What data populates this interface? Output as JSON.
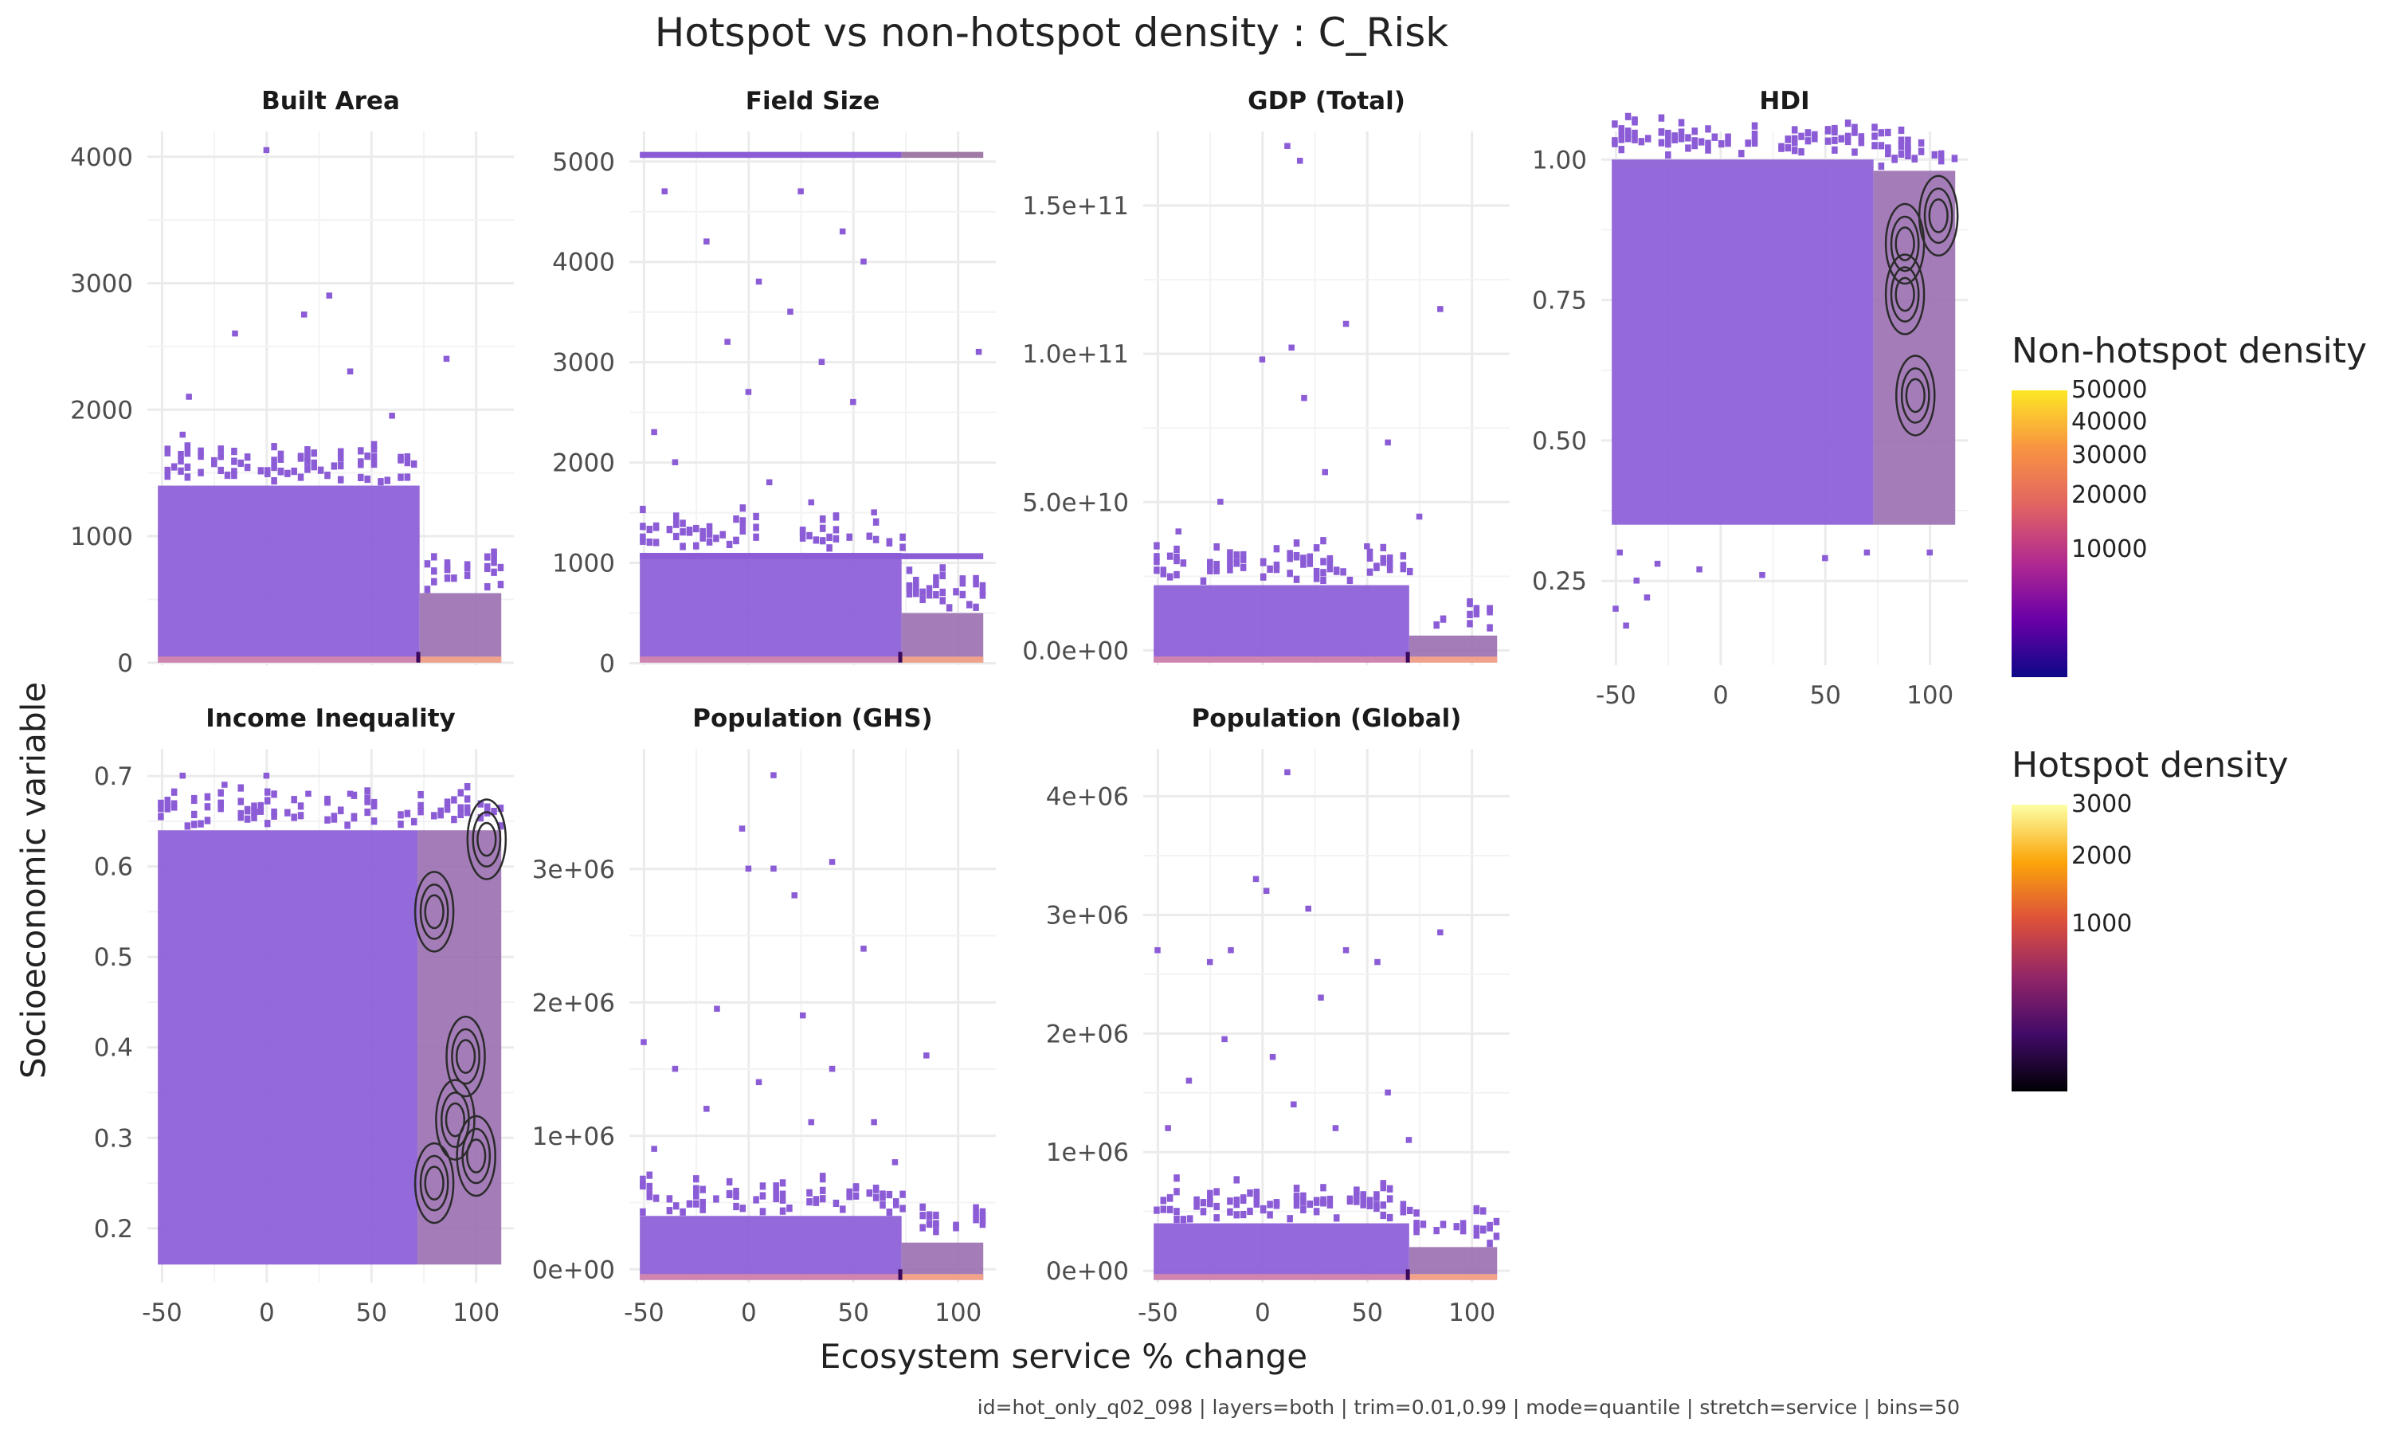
{
  "title": "Hotspot vs non-hotspot density : C_Risk",
  "xlabel": "Ecosystem service % change",
  "ylabel": "Socioeconomic variable",
  "caption": "id=hot_only_q02_098 | layers=both | trim=0.01,0.99 | mode=quantile | stretch=service | bins=50",
  "legend": {
    "nonhotspot": {
      "title": "Non-hotspot density",
      "ticks": [
        "50000",
        "40000",
        "30000",
        "20000",
        "10000"
      ],
      "colors": [
        "#fde725",
        "#f89441",
        "#e16462",
        "#b12a90",
        "#6a00a8",
        "#0d0887"
      ]
    },
    "hotspot": {
      "title": "Hotspot density",
      "ticks": [
        "3000",
        "2000",
        "1000"
      ],
      "colors": [
        "#fcffa4",
        "#fca50a",
        "#dd513a",
        "#932667",
        "#420a68",
        "#000004"
      ]
    }
  },
  "colors": {
    "bins": "#8b5cd6",
    "bins_dense": "#9a63c9",
    "hot_band": "#f0a38a",
    "contour": "#2b2b2b",
    "grid": "#ebebeb"
  },
  "chart_data": [
    {
      "type": "heatmap",
      "panel": "Built Area",
      "xlim": [
        -57,
        118
      ],
      "ylim": [
        -20,
        4200
      ],
      "xticks": [
        "-50",
        "0",
        "50",
        "100"
      ],
      "yticks": [
        {
          "v": 0,
          "l": "0"
        },
        {
          "v": 1000,
          "l": "1000"
        },
        {
          "v": 2000,
          "l": "2000"
        },
        {
          "v": 3000,
          "l": "3000"
        },
        {
          "v": 4000,
          "l": "4000"
        }
      ],
      "main_top": 1400,
      "hot_top": 550,
      "hot_start": 73,
      "points": [
        [
          0,
          4050
        ],
        [
          -37,
          2100
        ],
        [
          -15,
          2600
        ],
        [
          18,
          2750
        ],
        [
          30,
          2900
        ],
        [
          86,
          2400
        ],
        [
          -40,
          1800
        ],
        [
          40,
          2300
        ],
        [
          60,
          1950
        ]
      ],
      "contours": false
    },
    {
      "type": "heatmap",
      "panel": "Field Size",
      "xlim": [
        -57,
        118
      ],
      "ylim": [
        -20,
        5300
      ],
      "xticks": [
        "-50",
        "0",
        "50",
        "100"
      ],
      "yticks": [
        {
          "v": 0,
          "l": "0"
        },
        {
          "v": 1000,
          "l": "1000"
        },
        {
          "v": 2000,
          "l": "2000"
        },
        {
          "v": 3000,
          "l": "3000"
        },
        {
          "v": 4000,
          "l": "4000"
        },
        {
          "v": 5000,
          "l": "5000"
        }
      ],
      "main_top": 1100,
      "hot_top": 500,
      "hot_start": 73,
      "band_line": 5050,
      "band_line2": 1050,
      "points": [
        [
          -40,
          4700
        ],
        [
          -20,
          4200
        ],
        [
          5,
          3800
        ],
        [
          20,
          3500
        ],
        [
          35,
          3000
        ],
        [
          50,
          2600
        ],
        [
          -35,
          2000
        ],
        [
          10,
          1800
        ],
        [
          45,
          4300
        ],
        [
          -10,
          3200
        ],
        [
          25,
          4700
        ],
        [
          55,
          4000
        ],
        [
          110,
          3100
        ],
        [
          -45,
          2300
        ],
        [
          0,
          2700
        ],
        [
          30,
          1600
        ],
        [
          60,
          1500
        ]
      ],
      "contours": false
    },
    {
      "type": "heatmap",
      "panel": "GDP (Total)",
      "xlim": [
        -57,
        118
      ],
      "ylim": [
        -5000000000.0,
        175000000000.0
      ],
      "xticks": [
        "-50",
        "0",
        "50",
        "100"
      ],
      "yticks": [
        {
          "v": 0,
          "l": "0.0e+00"
        },
        {
          "v": 50000000000.0,
          "l": "5.0e+10"
        },
        {
          "v": 100000000000.0,
          "l": "1.0e+11"
        },
        {
          "v": 150000000000.0,
          "l": "1.5e+11"
        }
      ],
      "main_top": 22000000000.0,
      "hot_top": 5000000000.0,
      "hot_start": 70,
      "points": [
        [
          12,
          170000000000.0
        ],
        [
          18,
          165000000000.0
        ],
        [
          85,
          115000000000.0
        ],
        [
          40,
          110000000000.0
        ],
        [
          0,
          98000000000.0
        ],
        [
          14,
          102000000000.0
        ],
        [
          -20,
          50000000000.0
        ],
        [
          30,
          60000000000.0
        ],
        [
          60,
          70000000000.0
        ],
        [
          -40,
          40000000000.0
        ],
        [
          50,
          35000000000.0
        ],
        [
          75,
          45000000000.0
        ],
        [
          20,
          85000000000.0
        ]
      ],
      "contours": false
    },
    {
      "type": "heatmap",
      "panel": "HDI",
      "xlim": [
        -57,
        118
      ],
      "ylim": [
        0.1,
        1.05
      ],
      "xticks": [
        "-50",
        "0",
        "50",
        "100"
      ],
      "yticks": [
        {
          "v": 0.25,
          "l": "0.25"
        },
        {
          "v": 0.5,
          "l": "0.50"
        },
        {
          "v": 0.75,
          "l": "0.75"
        },
        {
          "v": 1,
          "l": "1.00"
        }
      ],
      "main_top": 1.0,
      "main_bottom": 0.35,
      "hot_top": 0.98,
      "hot_bottom": 0.35,
      "hot_start": 73,
      "points": [
        [
          -50,
          0.2
        ],
        [
          -45,
          0.17
        ],
        [
          -40,
          0.25
        ],
        [
          -30,
          0.28
        ],
        [
          -10,
          0.27
        ],
        [
          20,
          0.26
        ],
        [
          50,
          0.29
        ],
        [
          70,
          0.3
        ],
        [
          100,
          0.3
        ],
        [
          -48,
          0.3
        ],
        [
          -35,
          0.22
        ]
      ],
      "contours": true,
      "contour_centers": [
        [
          88,
          0.85
        ],
        [
          104,
          0.9
        ],
        [
          93,
          0.58
        ],
        [
          88,
          0.76
        ]
      ]
    },
    {
      "type": "heatmap",
      "panel": "Income Inequality",
      "xlim": [
        -57,
        118
      ],
      "ylim": [
        0.14,
        0.73
      ],
      "xticks": [
        "-50",
        "0",
        "50",
        "100"
      ],
      "yticks": [
        {
          "v": 0.2,
          "l": "0.2"
        },
        {
          "v": 0.3,
          "l": "0.3"
        },
        {
          "v": 0.4,
          "l": "0.4"
        },
        {
          "v": 0.5,
          "l": "0.5"
        },
        {
          "v": 0.6,
          "l": "0.6"
        },
        {
          "v": 0.7,
          "l": "0.7"
        }
      ],
      "main_top": 0.64,
      "main_bottom": 0.16,
      "hot_top": 0.64,
      "hot_bottom": 0.16,
      "hot_start": 72,
      "points": [
        [
          -40,
          0.7
        ],
        [
          -20,
          0.69
        ],
        [
          0,
          0.7
        ],
        [
          20,
          0.68
        ],
        [
          40,
          0.68
        ],
        [
          -5,
          0.66
        ]
      ],
      "contours": true,
      "contour_centers": [
        [
          95,
          0.39
        ],
        [
          90,
          0.32
        ],
        [
          100,
          0.28
        ],
        [
          80,
          0.25
        ],
        [
          105,
          0.63
        ],
        [
          80,
          0.55
        ]
      ]
    },
    {
      "type": "heatmap",
      "panel": "Population (GHS)",
      "xlim": [
        -57,
        118
      ],
      "ylim": [
        -100000.0,
        3900000.0
      ],
      "xticks": [
        "-50",
        "0",
        "50",
        "100"
      ],
      "yticks": [
        {
          "v": 0,
          "l": "0e+00"
        },
        {
          "v": 1000000.0,
          "l": "1e+06"
        },
        {
          "v": 2000000.0,
          "l": "2e+06"
        },
        {
          "v": 3000000.0,
          "l": "3e+06"
        }
      ],
      "main_top": 400000.0,
      "hot_top": 200000.0,
      "hot_start": 73,
      "points": [
        [
          12,
          3700000.0
        ],
        [
          -3,
          3300000.0
        ],
        [
          0,
          3000000.0
        ],
        [
          12,
          3000000.0
        ],
        [
          40,
          3050000.0
        ],
        [
          22,
          2800000.0
        ],
        [
          55,
          2400000.0
        ],
        [
          -15,
          1950000.0
        ],
        [
          26,
          1900000.0
        ],
        [
          -50,
          1700000.0
        ],
        [
          -35,
          1500000.0
        ],
        [
          85,
          1600000.0
        ],
        [
          5,
          1400000.0
        ],
        [
          40,
          1500000.0
        ],
        [
          -20,
          1200000.0
        ],
        [
          60,
          1100000.0
        ],
        [
          30,
          1100000.0
        ],
        [
          -45,
          900000.0
        ],
        [
          70,
          800000.0
        ]
      ],
      "contours": false
    },
    {
      "type": "heatmap",
      "panel": "Population (Global)",
      "xlim": [
        -57,
        118
      ],
      "ylim": [
        -100000.0,
        4400000.0
      ],
      "xticks": [
        "-50",
        "0",
        "50",
        "100"
      ],
      "yticks": [
        {
          "v": 0,
          "l": "0e+00"
        },
        {
          "v": 1000000.0,
          "l": "1e+06"
        },
        {
          "v": 2000000.0,
          "l": "2e+06"
        },
        {
          "v": 3000000.0,
          "l": "3e+06"
        },
        {
          "v": 4000000.0,
          "l": "4e+06"
        }
      ],
      "main_top": 400000.0,
      "hot_top": 200000.0,
      "hot_start": 70,
      "points": [
        [
          12,
          4200000.0
        ],
        [
          -3,
          3300000.0
        ],
        [
          2,
          3200000.0
        ],
        [
          22,
          3050000.0
        ],
        [
          -50,
          2700000.0
        ],
        [
          -25,
          2600000.0
        ],
        [
          -15,
          2700000.0
        ],
        [
          40,
          2700000.0
        ],
        [
          55,
          2600000.0
        ],
        [
          85,
          2850000.0
        ],
        [
          28,
          2300000.0
        ],
        [
          -18,
          1950000.0
        ],
        [
          5,
          1800000.0
        ],
        [
          -35,
          1600000.0
        ],
        [
          60,
          1500000.0
        ],
        [
          15,
          1400000.0
        ],
        [
          -45,
          1200000.0
        ],
        [
          70,
          1100000.0
        ],
        [
          35,
          1200000.0
        ]
      ],
      "contours": false
    }
  ]
}
